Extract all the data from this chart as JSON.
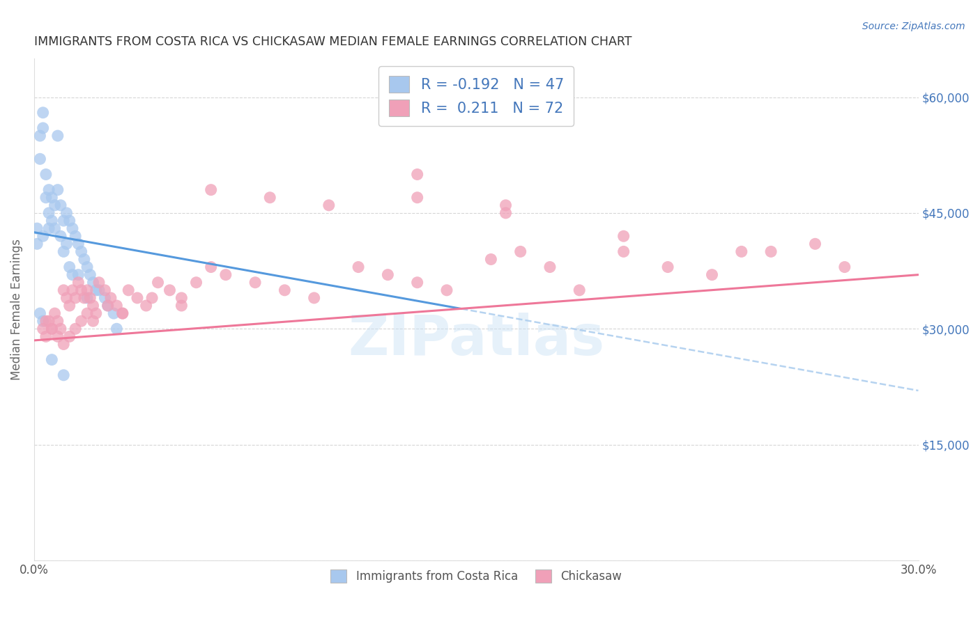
{
  "title": "IMMIGRANTS FROM COSTA RICA VS CHICKASAW MEDIAN FEMALE EARNINGS CORRELATION CHART",
  "source": "Source: ZipAtlas.com",
  "ylabel": "Median Female Earnings",
  "xlim": [
    0.0,
    0.3
  ],
  "ylim": [
    0,
    65000
  ],
  "legend_blue_r": "-0.192",
  "legend_blue_n": "47",
  "legend_pink_r": "0.211",
  "legend_pink_n": "72",
  "legend_labels": [
    "Immigrants from Costa Rica",
    "Chickasaw"
  ],
  "blue_color": "#A8C8EE",
  "pink_color": "#F0A0B8",
  "blue_line_color": "#5599DD",
  "pink_line_color": "#EE7799",
  "dashed_line_color": "#AACCEE",
  "title_color": "#333333",
  "axis_label_color": "#666666",
  "right_tick_color": "#4477BB",
  "watermark": "ZIPatlas",
  "blue_scatter_x": [
    0.002,
    0.002,
    0.003,
    0.003,
    0.003,
    0.004,
    0.004,
    0.005,
    0.005,
    0.005,
    0.006,
    0.006,
    0.007,
    0.007,
    0.008,
    0.008,
    0.009,
    0.009,
    0.01,
    0.01,
    0.011,
    0.011,
    0.012,
    0.012,
    0.013,
    0.013,
    0.014,
    0.015,
    0.015,
    0.016,
    0.017,
    0.018,
    0.019,
    0.02,
    0.021,
    0.022,
    0.024,
    0.025,
    0.027,
    0.028,
    0.001,
    0.001,
    0.002,
    0.003,
    0.006,
    0.018,
    0.01
  ],
  "blue_scatter_y": [
    55000,
    52000,
    58000,
    56000,
    42000,
    50000,
    47000,
    48000,
    45000,
    43000,
    47000,
    44000,
    46000,
    43000,
    55000,
    48000,
    46000,
    42000,
    44000,
    40000,
    45000,
    41000,
    44000,
    38000,
    43000,
    37000,
    42000,
    41000,
    37000,
    40000,
    39000,
    38000,
    37000,
    36000,
    35000,
    35000,
    34000,
    33000,
    32000,
    30000,
    43000,
    41000,
    32000,
    31000,
    26000,
    34000,
    24000
  ],
  "pink_scatter_x": [
    0.003,
    0.004,
    0.005,
    0.006,
    0.007,
    0.008,
    0.009,
    0.01,
    0.011,
    0.012,
    0.013,
    0.014,
    0.015,
    0.016,
    0.017,
    0.018,
    0.019,
    0.02,
    0.021,
    0.022,
    0.024,
    0.026,
    0.028,
    0.03,
    0.032,
    0.035,
    0.038,
    0.042,
    0.046,
    0.05,
    0.055,
    0.06,
    0.065,
    0.075,
    0.085,
    0.095,
    0.11,
    0.12,
    0.13,
    0.14,
    0.155,
    0.165,
    0.175,
    0.185,
    0.2,
    0.215,
    0.23,
    0.25,
    0.265,
    0.275,
    0.004,
    0.006,
    0.008,
    0.01,
    0.012,
    0.014,
    0.016,
    0.018,
    0.02,
    0.025,
    0.03,
    0.04,
    0.05,
    0.06,
    0.08,
    0.1,
    0.13,
    0.16,
    0.2,
    0.24,
    0.13,
    0.16
  ],
  "pink_scatter_y": [
    30000,
    29000,
    31000,
    30000,
    32000,
    31000,
    30000,
    35000,
    34000,
    33000,
    35000,
    34000,
    36000,
    35000,
    34000,
    35000,
    34000,
    33000,
    32000,
    36000,
    35000,
    34000,
    33000,
    32000,
    35000,
    34000,
    33000,
    36000,
    35000,
    34000,
    36000,
    38000,
    37000,
    36000,
    35000,
    34000,
    38000,
    37000,
    36000,
    35000,
    39000,
    40000,
    38000,
    35000,
    40000,
    38000,
    37000,
    40000,
    41000,
    38000,
    31000,
    30000,
    29000,
    28000,
    29000,
    30000,
    31000,
    32000,
    31000,
    33000,
    32000,
    34000,
    33000,
    48000,
    47000,
    46000,
    47000,
    46000,
    42000,
    40000,
    50000,
    45000
  ],
  "blue_line_x0": 0.0,
  "blue_line_x_solid_end": 0.145,
  "blue_line_x1": 0.3,
  "blue_line_y0": 42500,
  "blue_line_y1": 22000,
  "pink_line_x0": 0.0,
  "pink_line_x1": 0.3,
  "pink_line_y0": 28500,
  "pink_line_y1": 37000
}
